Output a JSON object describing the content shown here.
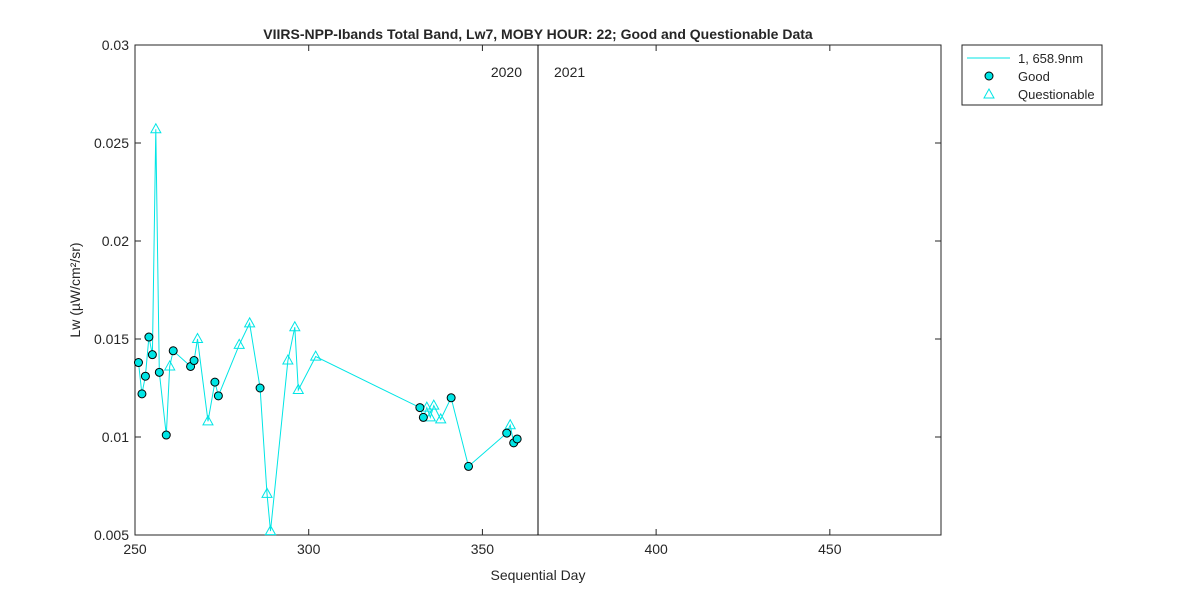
{
  "chart_data": {
    "type": "line",
    "title": "VIIRS-NPP-Ibands Total Band,  Lw7, MOBY HOUR: 22;  Good and Questionable Data",
    "xlabel": "Sequential Day",
    "ylabel": "Lw (µW/cm²/sr)",
    "xlim": [
      250,
      482
    ],
    "ylim": [
      0.005,
      0.03
    ],
    "xticks": [
      250,
      300,
      350,
      400,
      450
    ],
    "xtick_labels": [
      "250",
      "300",
      "350",
      "400",
      "450"
    ],
    "yticks": [
      0.005,
      0.01,
      0.015,
      0.02,
      0.025,
      0.03
    ],
    "ytick_labels": [
      "0.005",
      "0.01",
      "0.015",
      "0.02",
      "0.025",
      "0.03"
    ],
    "grid": false,
    "legend_position": "outside-top-right",
    "year_divider": {
      "x": 366,
      "left_label": "2020",
      "right_label": "2021"
    },
    "series": [
      {
        "name": "1, 658.9nm",
        "kind": "line",
        "color": "#00e5e5",
        "x": [
          251,
          252,
          253,
          254,
          255,
          256,
          257,
          259,
          260,
          261,
          266,
          267,
          268,
          271,
          273,
          274,
          280,
          283,
          286,
          288,
          289,
          294,
          296,
          297,
          302,
          332,
          333,
          334,
          335,
          336,
          338,
          341,
          346,
          357,
          358,
          359,
          360
        ],
        "y": [
          0.0138,
          0.0122,
          0.0131,
          0.0151,
          0.0142,
          0.0257,
          0.0133,
          0.0101,
          0.0136,
          0.0144,
          0.0136,
          0.0139,
          0.015,
          0.0108,
          0.0128,
          0.0121,
          0.0147,
          0.0158,
          0.0125,
          0.0071,
          0.0052,
          0.0139,
          0.0156,
          0.0124,
          0.0141,
          0.0115,
          0.011,
          0.0115,
          0.011,
          0.0116,
          0.0109,
          0.012,
          0.0085,
          0.0102,
          0.0106,
          0.0097,
          0.0099
        ]
      },
      {
        "name": "Good",
        "kind": "marker-circle",
        "color": "#00e5e5",
        "x": [
          251,
          252,
          253,
          254,
          255,
          257,
          259,
          261,
          266,
          267,
          273,
          274,
          286,
          332,
          333,
          341,
          346,
          357,
          359,
          360
        ],
        "y": [
          0.0138,
          0.0122,
          0.0131,
          0.0151,
          0.0142,
          0.0133,
          0.0101,
          0.0144,
          0.0136,
          0.0139,
          0.0128,
          0.0121,
          0.0125,
          0.0115,
          0.011,
          0.012,
          0.0085,
          0.0102,
          0.0097,
          0.0099
        ]
      },
      {
        "name": "Questionable",
        "kind": "marker-triangle",
        "color": "#00e5e5",
        "x": [
          256,
          260,
          268,
          271,
          280,
          283,
          288,
          289,
          294,
          296,
          297,
          302,
          334,
          335,
          336,
          338,
          358
        ],
        "y": [
          0.0257,
          0.0136,
          0.015,
          0.0108,
          0.0147,
          0.0158,
          0.0071,
          0.0052,
          0.0139,
          0.0156,
          0.0124,
          0.0141,
          0.0115,
          0.011,
          0.0116,
          0.0109,
          0.0106
        ]
      }
    ]
  }
}
